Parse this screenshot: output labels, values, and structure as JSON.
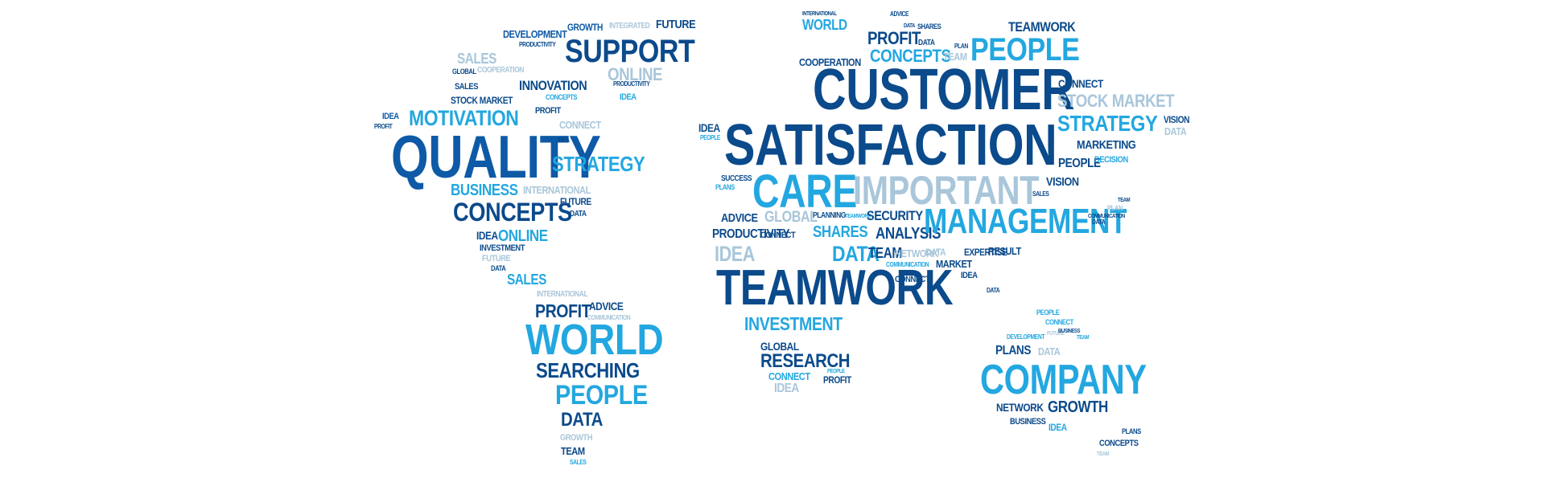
{
  "palette": {
    "dark": "#0e5aa7",
    "bright": "#23a7e0",
    "pale": "#a9c6da",
    "navy": "#0b4a8b"
  },
  "words": {
    "north_america": [
      "DEVELOPMENT",
      "GROWTH",
      "INTEGRATED",
      "FUTURE",
      "PRODUCTIVITY",
      "SUPPORT",
      "SALES",
      "ONLINE",
      "GLOBAL",
      "COOPERATION",
      "INNOVATION",
      "SALES",
      "PRODUCTIVITY",
      "STOCK MARKET",
      "CONCEPTS",
      "IDEA",
      "PROFIT",
      "CONNECT",
      "IDEA",
      "MOTIVATION",
      "PROFIT",
      "QUALITY",
      "IDEA",
      "STRATEGY",
      "BUSINESS",
      "INTERNATIONAL",
      "CONCEPTS",
      "FUTURE",
      "DATA",
      "IDEA",
      "ONLINE",
      "INVESTMENT",
      "FUTURE",
      "DATA",
      "SALES"
    ],
    "south_america": [
      "INTERNATIONAL",
      "PROFIT",
      "ADVICE",
      "COMMUNICATION",
      "WORLD",
      "SEARCHING",
      "PEOPLE",
      "DATA",
      "GROWTH",
      "TEAM",
      "SALES"
    ],
    "europe_africa": [
      "INTERNATIONAL",
      "WORLD",
      "PROFIT",
      "DATA",
      "CONCEPTS",
      "COOPERATION",
      "CUSTOMER",
      "IDEA",
      "PEOPLE",
      "SATISFACTION",
      "SUCCESS",
      "PLANS",
      "CARE",
      "IMPORTANT",
      "ADVICE",
      "GLOBAL",
      "PLANNING",
      "TEAMWORK",
      "SECURITY",
      "PRODUCTIVITY",
      "CONNECT",
      "SHARES",
      "ANALYSIS",
      "MANAGEMENT",
      "IDEA",
      "DATA",
      "TEAM",
      "NETWORK",
      "DATA",
      "EXPERTISE",
      "RESULT",
      "TEAMWORK",
      "INVESTMENT",
      "GLOBAL",
      "RESEARCH",
      "CONNECT",
      "PEOPLE",
      "PROFIT",
      "IDEA"
    ],
    "asia": [
      "ADVICE",
      "DATA",
      "SHARES",
      "PLAN",
      "TEAM",
      "TEAMWORK",
      "PEOPLE",
      "CONNECT",
      "STOCK MARKET",
      "STRATEGY",
      "VISION",
      "DATA",
      "MARKETING",
      "PEOPLE",
      "DECISION",
      "VISION",
      "SALES",
      "TEAM",
      "PLAN",
      "COMMUNICATION",
      "DATA",
      "COMMUNICATION",
      "MARKET",
      "IDEA",
      "CONNECT",
      "DATA"
    ],
    "oceania": [
      "PEOPLE",
      "CONNECT",
      "FUTURE",
      "DEVELOPMENT",
      "BUSINESS",
      "TEAM",
      "PLANS",
      "DATA",
      "COMPANY",
      "NETWORK",
      "GROWTH",
      "BUSINESS",
      "IDEA",
      "PLANS",
      "CONCEPTS",
      "TEAM"
    ]
  }
}
